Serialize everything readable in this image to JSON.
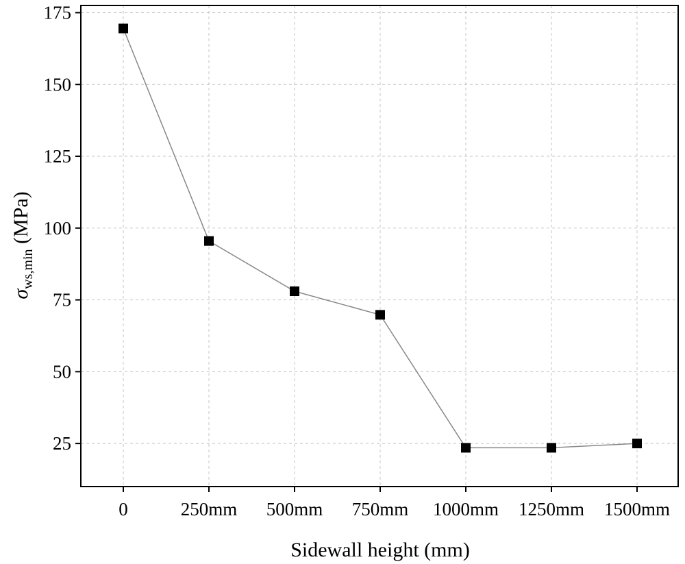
{
  "chart_data": {
    "type": "line",
    "title": "",
    "xlabel": "Sidewall height (mm)",
    "ylabel": {
      "symbol": "σ",
      "subscript": "ws,min",
      "unit": " (MPa)"
    },
    "categories": [
      "0",
      "250mm",
      "500mm",
      "750mm",
      "1000mm",
      "1250mm",
      "1500mm"
    ],
    "series": [
      {
        "name": "σws,min",
        "values": [
          169.5,
          95.5,
          78,
          69.8,
          23.5,
          23.5,
          25
        ],
        "marker": "square"
      }
    ],
    "ylim": [
      10,
      177.5
    ],
    "yticks": [
      25,
      50,
      75,
      100,
      125,
      150,
      175
    ],
    "ytick_labels": [
      "25",
      "50",
      "75",
      "100",
      "125",
      "150",
      "175"
    ],
    "grid": true,
    "colors": {
      "line": "#888888",
      "marker": "#000000",
      "grid": "#c4c4c4",
      "axis": "#000000"
    }
  }
}
